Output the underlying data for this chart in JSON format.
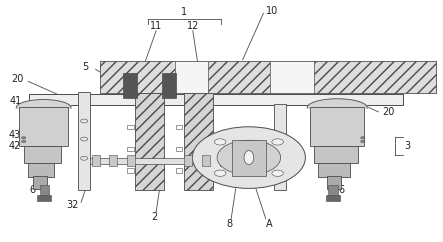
{
  "bg_color": "#ffffff",
  "line_color": "#4a4a4a",
  "dark_fill": "#555555",
  "light_fill": "#e8e8e8",
  "mid_fill": "#cccccc",
  "fig_width": 4.43,
  "fig_height": 2.42
}
